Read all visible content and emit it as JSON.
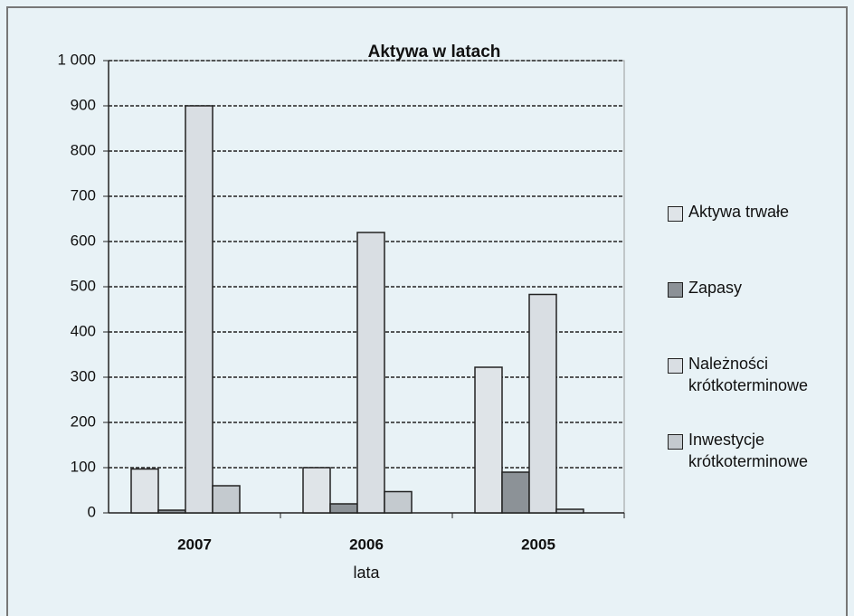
{
  "chart_data": {
    "type": "bar",
    "title": "Aktywa w latach",
    "x_label": "lata",
    "categories": [
      "2007",
      "2006",
      "2005"
    ],
    "series": [
      {
        "name": "Aktywa trwałe",
        "color": "#dfe4e8",
        "values": [
          97,
          100,
          322
        ]
      },
      {
        "name": "Zapasy",
        "color": "#8c9297",
        "values": [
          6,
          20,
          90
        ]
      },
      {
        "name": "Należności krótkoterminowe",
        "color": "#d9dee3",
        "values": [
          900,
          620,
          483
        ]
      },
      {
        "name": "Inwestycje krótkoterminowe",
        "color": "#c4cacf",
        "values": [
          60,
          47,
          8
        ]
      }
    ],
    "ylim": [
      0,
      1000
    ],
    "yticks": [
      0,
      100,
      200,
      300,
      400,
      500,
      600,
      700,
      800,
      900,
      {
        "value": 1000,
        "label": "1 000"
      }
    ],
    "grid": true,
    "legend": "right"
  }
}
